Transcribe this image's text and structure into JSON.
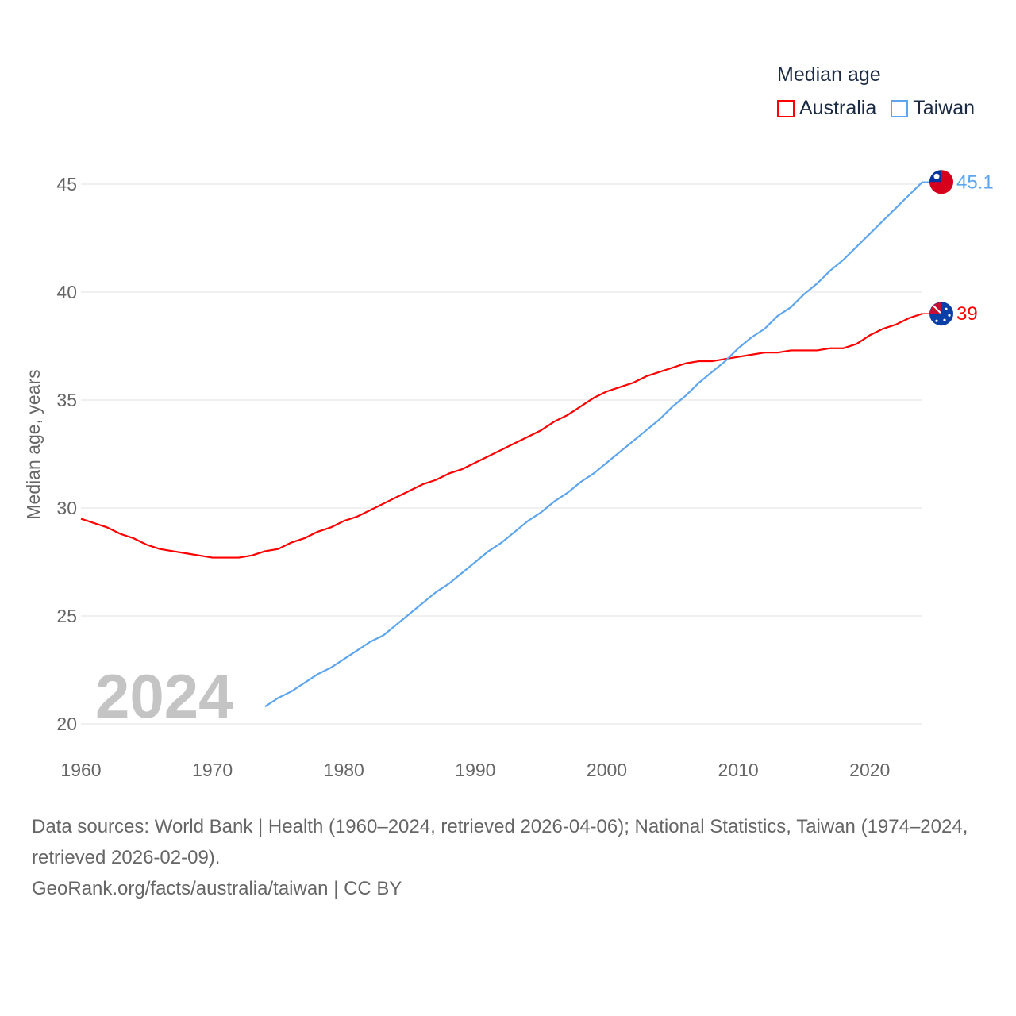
{
  "chart_data": {
    "type": "line",
    "title": "Median age",
    "ylabel": "Median age, years",
    "xlabel": "",
    "xlim": [
      1960,
      2024
    ],
    "ylim": [
      20,
      45
    ],
    "xticks": [
      1960,
      1970,
      1980,
      1990,
      2000,
      2010,
      2020
    ],
    "yticks": [
      20,
      25,
      30,
      35,
      40,
      45
    ],
    "grid": true,
    "legend_placement": "top-right",
    "year_label": "2024",
    "series": [
      {
        "name": "Australia",
        "color": "#ff0000",
        "end_label": "39",
        "flag": "australia-flag",
        "x": [
          1960,
          1962,
          1963,
          1964,
          1965,
          1966,
          1967,
          1968,
          1969,
          1970,
          1971,
          1972,
          1973,
          1974,
          1975,
          1976,
          1977,
          1978,
          1979,
          1980,
          1981,
          1982,
          1983,
          1984,
          1985,
          1986,
          1987,
          1988,
          1989,
          1990,
          1991,
          1992,
          1993,
          1994,
          1995,
          1996,
          1997,
          1998,
          1999,
          2000,
          2001,
          2002,
          2003,
          2004,
          2005,
          2006,
          2007,
          2008,
          2009,
          2010,
          2011,
          2012,
          2013,
          2014,
          2015,
          2016,
          2017,
          2018,
          2019,
          2020,
          2021,
          2022,
          2023,
          2024
        ],
        "values": [
          29.5,
          29.1,
          28.8,
          28.6,
          28.3,
          28.1,
          28.0,
          27.9,
          27.8,
          27.7,
          27.7,
          27.7,
          27.8,
          28.0,
          28.1,
          28.4,
          28.6,
          28.9,
          29.1,
          29.4,
          29.6,
          29.9,
          30.2,
          30.5,
          30.8,
          31.1,
          31.3,
          31.6,
          31.8,
          32.1,
          32.4,
          32.7,
          33.0,
          33.3,
          33.6,
          34.0,
          34.3,
          34.7,
          35.1,
          35.4,
          35.6,
          35.8,
          36.1,
          36.3,
          36.5,
          36.7,
          36.8,
          36.8,
          36.9,
          37.0,
          37.1,
          37.2,
          37.2,
          37.3,
          37.3,
          37.3,
          37.4,
          37.4,
          37.6,
          38.0,
          38.3,
          38.5,
          38.8,
          39.0
        ]
      },
      {
        "name": "Taiwan",
        "color": "#5da5ee",
        "end_label": "45.1",
        "flag": "taiwan-flag",
        "x": [
          1974,
          1975,
          1976,
          1977,
          1978,
          1979,
          1980,
          1981,
          1982,
          1983,
          1984,
          1985,
          1986,
          1987,
          1988,
          1989,
          1990,
          1991,
          1992,
          1993,
          1994,
          1995,
          1996,
          1997,
          1998,
          1999,
          2000,
          2001,
          2002,
          2003,
          2004,
          2005,
          2006,
          2007,
          2008,
          2009,
          2010,
          2011,
          2012,
          2013,
          2014,
          2015,
          2016,
          2017,
          2018,
          2019,
          2020,
          2021,
          2022,
          2023,
          2024
        ],
        "values": [
          20.8,
          21.2,
          21.5,
          21.9,
          22.3,
          22.6,
          23.0,
          23.4,
          23.8,
          24.1,
          24.6,
          25.1,
          25.6,
          26.1,
          26.5,
          27.0,
          27.5,
          28.0,
          28.4,
          28.9,
          29.4,
          29.8,
          30.3,
          30.7,
          31.2,
          31.6,
          32.1,
          32.6,
          33.1,
          33.6,
          34.1,
          34.7,
          35.2,
          35.8,
          36.3,
          36.8,
          37.4,
          37.9,
          38.3,
          38.9,
          39.3,
          39.9,
          40.4,
          41.0,
          41.5,
          42.1,
          42.7,
          43.3,
          43.9,
          44.5,
          45.1
        ]
      }
    ]
  },
  "footer": {
    "sources": "Data sources: World Bank | Health (1960–2024, retrieved 2026-04-06); National Statistics, Taiwan (1974–2024, retrieved 2026-02-09).",
    "link": "GeoRank.org/facts/australia/taiwan | CC BY"
  }
}
